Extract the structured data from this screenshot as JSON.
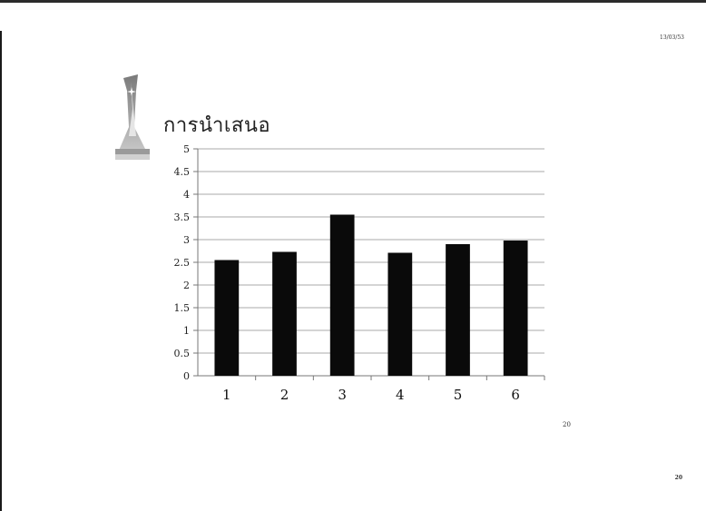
{
  "slide": {
    "date": "13/03/53",
    "title": "การนำเสนอ",
    "footnote": "20",
    "page_number": "20"
  },
  "chart_data": {
    "type": "bar",
    "categories": [
      "1",
      "2",
      "3",
      "4",
      "5",
      "6"
    ],
    "values": [
      2.55,
      2.73,
      3.55,
      2.71,
      2.9,
      2.98
    ],
    "ylim": [
      0,
      5
    ],
    "yticks": [
      "0",
      "0.5",
      "1",
      "1.5",
      "2",
      "2.5",
      "3",
      "3.5",
      "4",
      "4.5",
      "5"
    ],
    "grid": true,
    "bar_color": "#0a0a0a",
    "title": "",
    "xlabel": "",
    "ylabel": ""
  }
}
